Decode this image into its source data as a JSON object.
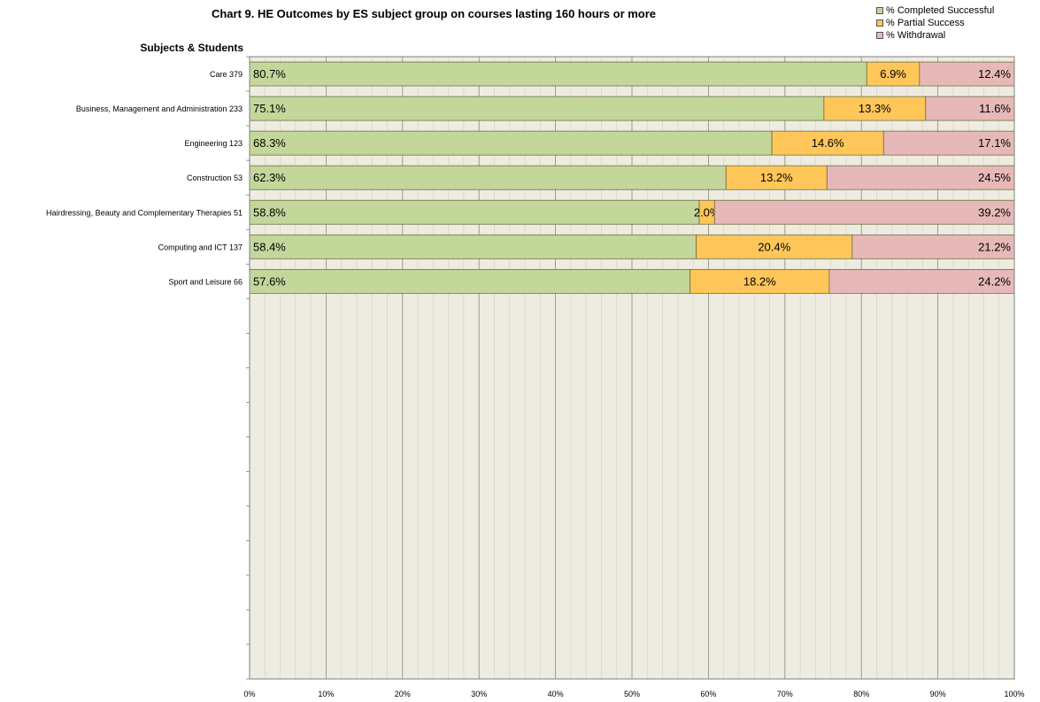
{
  "chart_data": {
    "type": "bar",
    "orientation": "horizontal",
    "stacked": "percent",
    "title": "Chart 9. HE Outcomes by ES subject group on courses lasting 160 hours or more",
    "ylabel": "Subjects & Students",
    "xlabel": "",
    "xlim": [
      0,
      100
    ],
    "x_ticks": [
      "0%",
      "10%",
      "20%",
      "30%",
      "40%",
      "50%",
      "60%",
      "70%",
      "80%",
      "90%",
      "100%"
    ],
    "categories": [
      "Care  379",
      "Business, Management and Administration  233",
      "Engineering  123",
      "Construction  53",
      "Hairdressing, Beauty and Complementary Therapies  51",
      "Computing and ICT  137",
      "Sport and Leisure  66"
    ],
    "series": [
      {
        "name": "% Completed Successful",
        "color": "#c4d79b",
        "values": [
          80.7,
          75.1,
          68.3,
          62.3,
          58.8,
          58.4,
          57.6
        ],
        "labels": [
          "80.7%",
          "75.1%",
          "68.3%",
          "62.3%",
          "58.8%",
          "58.4%",
          "57.6%"
        ]
      },
      {
        "name": "% Partial Success",
        "color": "#ffc65a",
        "values": [
          6.9,
          13.3,
          14.6,
          13.2,
          2.0,
          20.4,
          18.2
        ],
        "labels": [
          "6.9%",
          "13.3%",
          "14.6%",
          "13.2%",
          "2.0%",
          "20.4%",
          "18.2%"
        ]
      },
      {
        "name": "% Withdrawal",
        "color": "#e6b9b8",
        "values": [
          12.4,
          11.6,
          17.1,
          24.5,
          39.2,
          21.2,
          24.2
        ],
        "labels": [
          "12.4%",
          "11.6%",
          "17.1%",
          "24.5%",
          "39.2%",
          "21.2%",
          "24.2%"
        ]
      }
    ],
    "legend_position": "top-right",
    "grid": true,
    "plot_background": "#eeece1"
  }
}
